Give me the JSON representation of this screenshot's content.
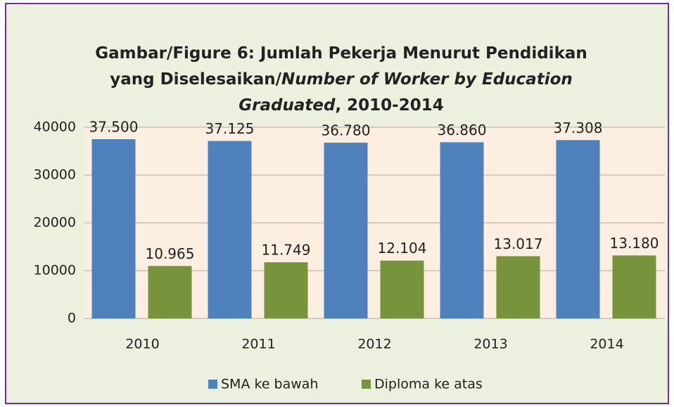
{
  "chart_data": {
    "type": "bar",
    "title": [
      [
        "Gambar/Figure 6: Jumlah Pekerja Menurut Pendidikan"
      ],
      [
        "yang Diselesaikan/",
        "Number of Worker by Education"
      ],
      [
        "Graduated",
        ", 2010-2014"
      ]
    ],
    "categories": [
      "2010",
      "2011",
      "2012",
      "2013",
      "2014"
    ],
    "series": [
      {
        "name": "SMA ke bawah",
        "color": "#4f81bd",
        "values": [
          37500,
          37125,
          36780,
          36860,
          37308
        ],
        "value_labels": [
          "37.500",
          "37.125",
          "36.780",
          "36.860",
          "37.308"
        ]
      },
      {
        "name": "Diploma ke atas",
        "color": "#77933c",
        "values": [
          10965,
          11749,
          12104,
          13017,
          13180
        ],
        "value_labels": [
          "10.965",
          "11.749",
          "12.104",
          "13.017",
          "13.180"
        ]
      }
    ],
    "ylim": [
      0,
      40000
    ],
    "yticks": [
      0,
      10000,
      20000,
      30000,
      40000
    ],
    "grid": true,
    "legend": "bottom"
  }
}
